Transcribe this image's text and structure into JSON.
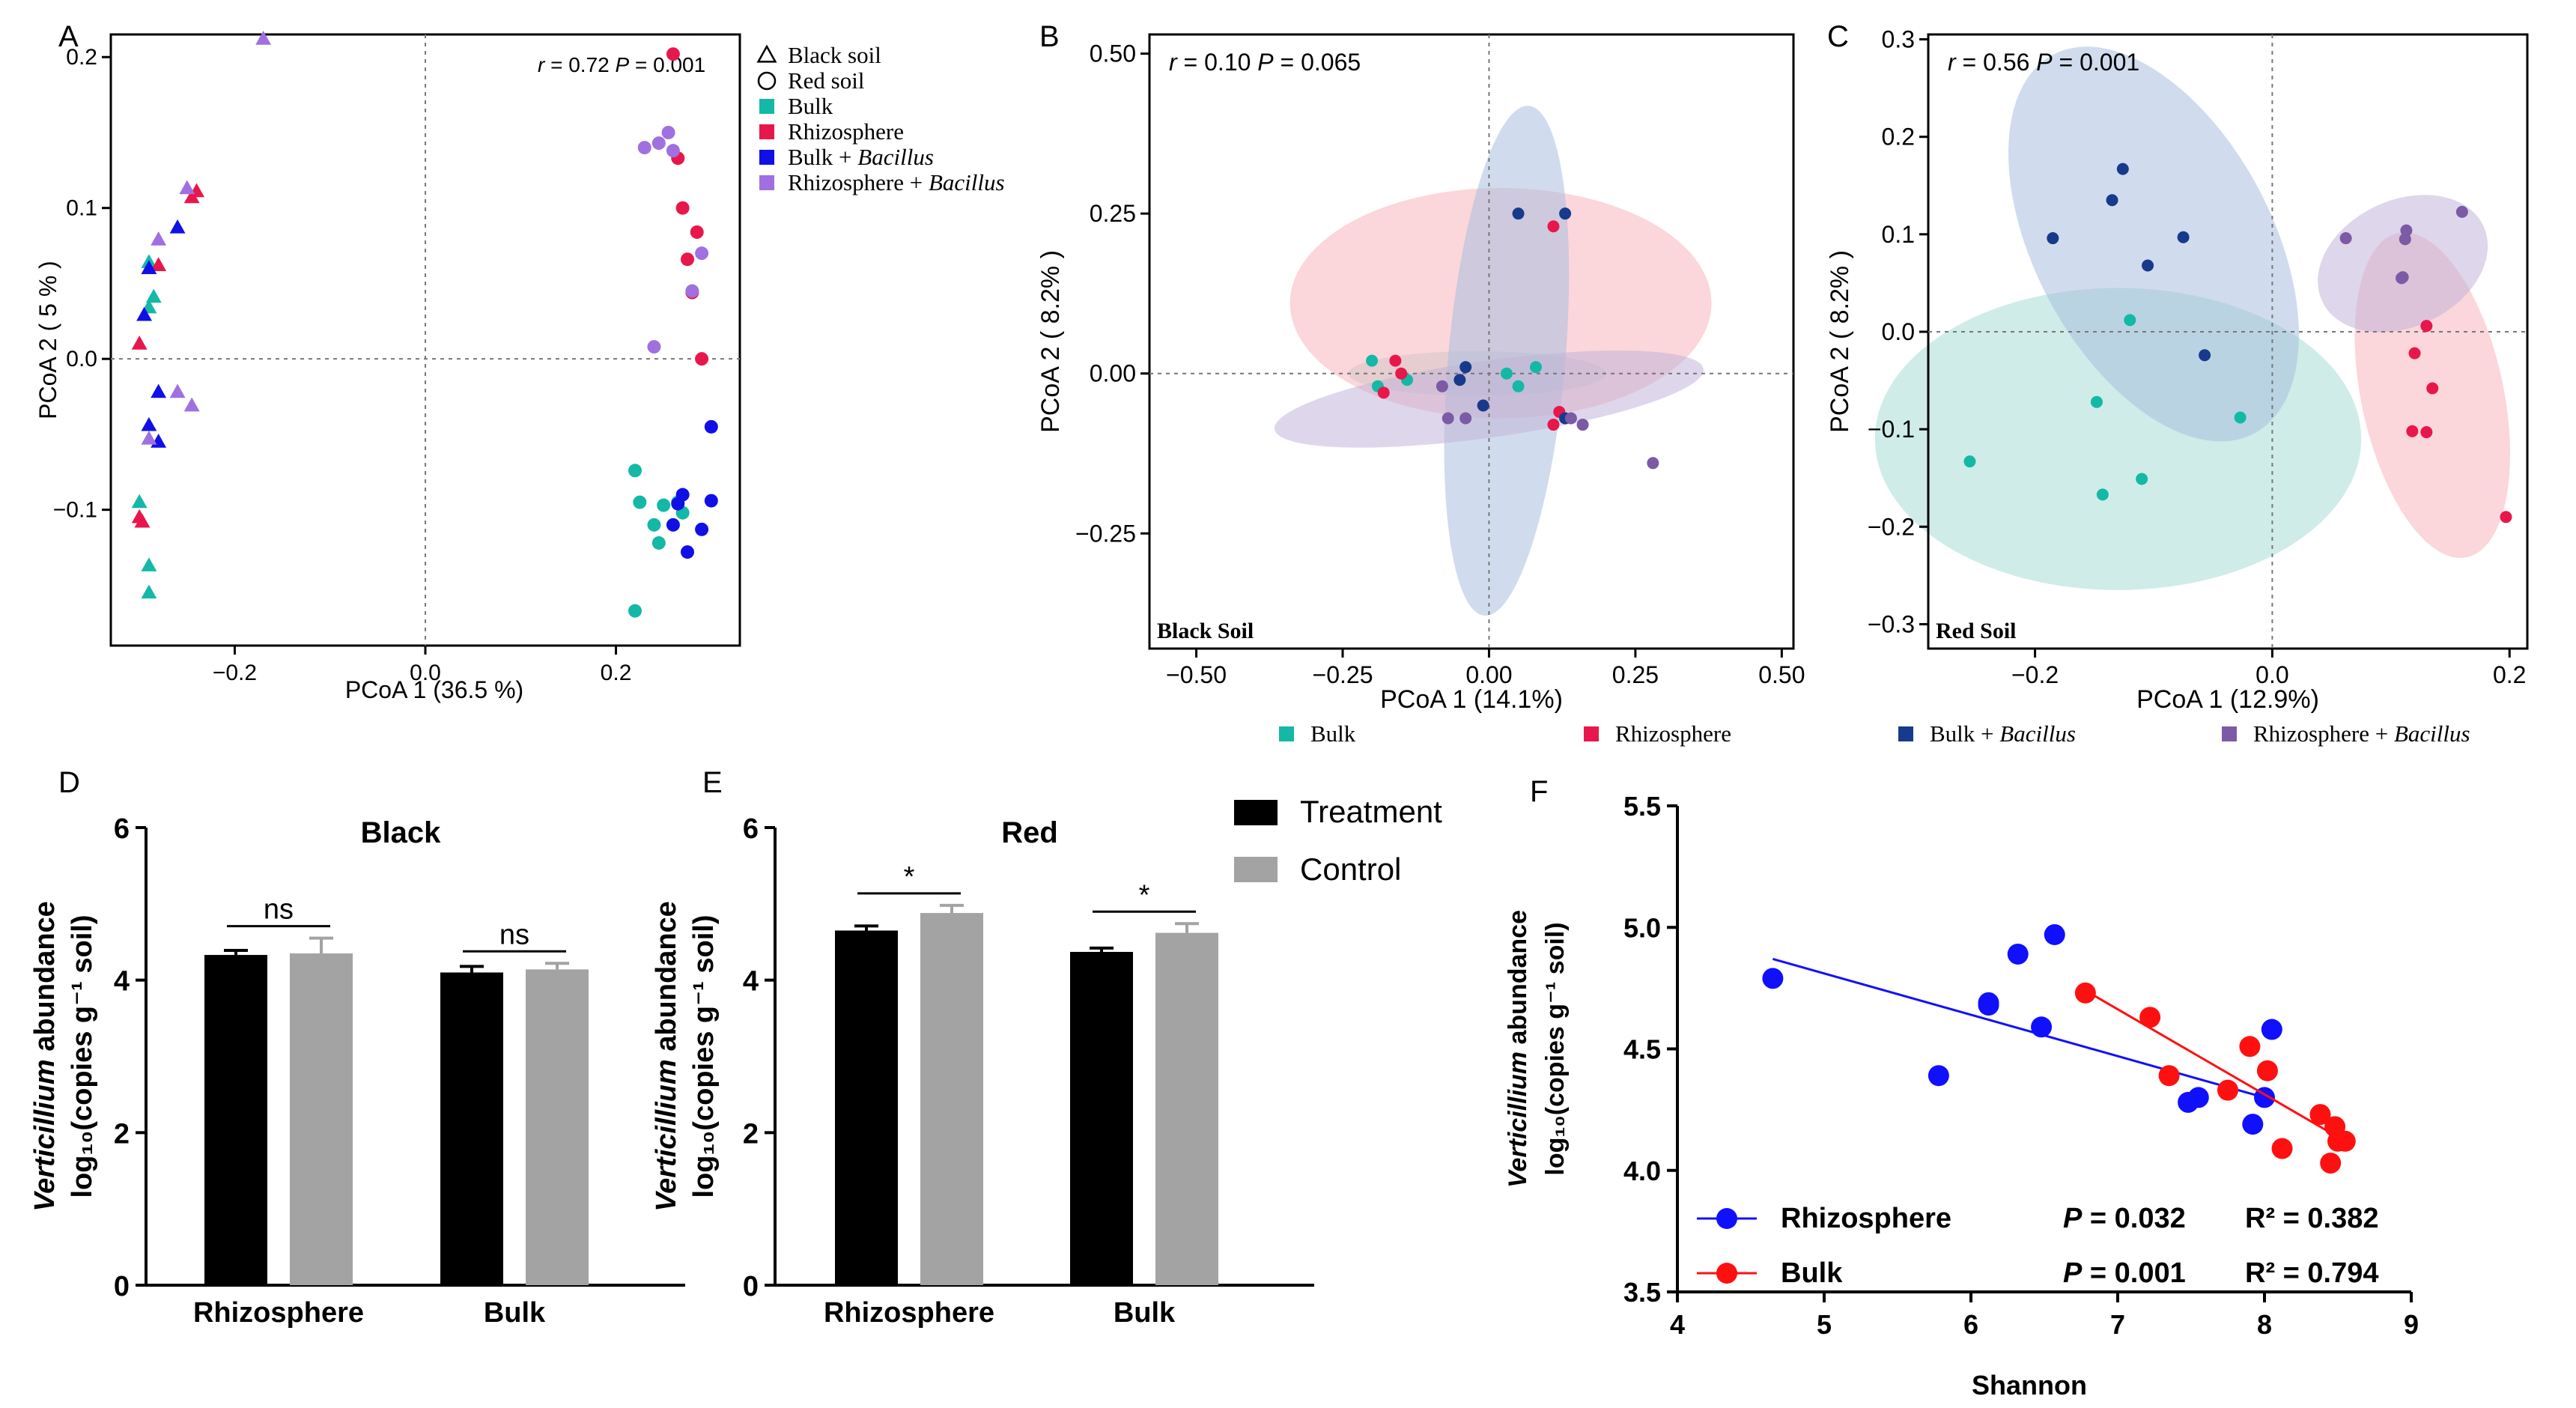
{
  "colors": {
    "bulk": "#14b8a6",
    "rhizosphere": "#e8174b",
    "bulk_bacillus": "#1010e6",
    "rhizo_bacillus": "#a070e0",
    "b_bulk_bacillus": "#173a8c",
    "b_rhizo_bacillus": "#7c5aa6",
    "bar_treatment": "#000000",
    "bar_control": "#a3a3a3",
    "f_rhizo": "#1010ff",
    "f_bulk": "#ff1010"
  },
  "chart_data": [
    {
      "panel": "A",
      "type": "scatter",
      "xlabel": "PCoA 1 (36.5 %)",
      "ylabel": "PCoA 2 ( 5 % )",
      "xlim": [
        -0.33,
        0.33
      ],
      "ylim": [
        -0.19,
        0.215
      ],
      "xticks": [
        -0.2,
        0.0,
        0.2
      ],
      "xtick_labels": [
        "−0.2",
        "0.0",
        "0.2"
      ],
      "yticks": [
        -0.1,
        0.0,
        0.1,
        0.2
      ],
      "ytick_labels": [
        "−0.1",
        "0.0",
        "0.1",
        "0.2"
      ],
      "stat": {
        "r_label": "r",
        "r_value": "= 0.72",
        "p_label": "P",
        "p_value": "= 0.001"
      },
      "legend": {
        "shapes": [
          {
            "symbol": "triangle",
            "label": "Black soil"
          },
          {
            "symbol": "circle",
            "label": "Red soil"
          }
        ],
        "groups": [
          {
            "key": "bulk",
            "label": "Bulk",
            "italic": ""
          },
          {
            "key": "rhizosphere",
            "label": "Rhizosphere",
            "italic": ""
          },
          {
            "key": "bulk_bacillus",
            "label": "Bulk + ",
            "italic": "Bacillus"
          },
          {
            "key": "rhizo_bacillus",
            "label": "Rhizosphere + ",
            "italic": "Bacillus"
          }
        ]
      },
      "series": [
        {
          "group": "bulk",
          "shape": "triangle",
          "points": [
            [
              -0.29,
              0.064
            ],
            [
              -0.285,
              0.041
            ],
            [
              -0.29,
              0.034
            ],
            [
              -0.3,
              -0.095
            ],
            [
              -0.29,
              -0.137
            ],
            [
              -0.29,
              -0.155
            ]
          ]
        },
        {
          "group": "rhizosphere",
          "shape": "triangle",
          "points": [
            [
              -0.24,
              0.111
            ],
            [
              -0.245,
              0.107
            ],
            [
              -0.28,
              0.062
            ],
            [
              -0.3,
              0.01
            ],
            [
              -0.3,
              -0.105
            ],
            [
              -0.297,
              -0.108
            ]
          ]
        },
        {
          "group": "bulk_bacillus",
          "shape": "triangle",
          "points": [
            [
              -0.26,
              0.087
            ],
            [
              -0.29,
              0.06
            ],
            [
              -0.295,
              0.029
            ],
            [
              -0.28,
              -0.022
            ],
            [
              -0.29,
              -0.044
            ],
            [
              -0.28,
              -0.055
            ]
          ]
        },
        {
          "group": "rhizo_bacillus",
          "shape": "triangle",
          "points": [
            [
              -0.17,
              0.212
            ],
            [
              -0.25,
              0.113
            ],
            [
              -0.28,
              0.079
            ],
            [
              -0.26,
              -0.022
            ],
            [
              -0.245,
              -0.031
            ],
            [
              -0.29,
              -0.053
            ]
          ]
        },
        {
          "group": "bulk",
          "shape": "circle",
          "points": [
            [
              0.22,
              -0.074
            ],
            [
              0.225,
              -0.095
            ],
            [
              0.24,
              -0.11
            ],
            [
              0.245,
              -0.122
            ],
            [
              0.25,
              -0.097
            ],
            [
              0.22,
              -0.167
            ],
            [
              0.265,
              -0.095
            ],
            [
              0.27,
              -0.102
            ]
          ]
        },
        {
          "group": "rhizosphere",
          "shape": "circle",
          "points": [
            [
              0.26,
              0.202
            ],
            [
              0.265,
              0.133
            ],
            [
              0.27,
              0.1
            ],
            [
              0.285,
              0.084
            ],
            [
              0.275,
              0.066
            ],
            [
              0.28,
              0.044
            ],
            [
              0.29,
              0.0
            ]
          ]
        },
        {
          "group": "bulk_bacillus",
          "shape": "circle",
          "points": [
            [
              0.3,
              -0.045
            ],
            [
              0.27,
              -0.09
            ],
            [
              0.265,
              -0.096
            ],
            [
              0.3,
              -0.094
            ],
            [
              0.26,
              -0.11
            ],
            [
              0.29,
              -0.113
            ],
            [
              0.275,
              -0.128
            ]
          ]
        },
        {
          "group": "rhizo_bacillus",
          "shape": "circle",
          "points": [
            [
              0.245,
              0.143
            ],
            [
              0.255,
              0.15
            ],
            [
              0.23,
              0.14
            ],
            [
              0.26,
              0.138
            ],
            [
              0.29,
              0.07
            ],
            [
              0.28,
              0.045
            ],
            [
              0.24,
              0.008
            ]
          ]
        }
      ]
    },
    {
      "panel": "B",
      "type": "scatter",
      "title_inset": "Black Soil",
      "xlabel": "PCoA 1 (14.1%)",
      "ylabel": "PCoA 2 ( 8.2% )",
      "xlim": [
        -0.58,
        0.52
      ],
      "ylim": [
        -0.43,
        0.53
      ],
      "xticks": [
        -0.5,
        -0.25,
        0,
        0.25,
        0.5
      ],
      "xtick_labels": [
        "−0.50",
        "−0.25",
        "0.00",
        "0.25",
        "0.50"
      ],
      "yticks": [
        -0.25,
        0,
        0.25,
        0.5
      ],
      "ytick_labels": [
        "−0.25",
        "0.00",
        "0.25",
        "0.50"
      ],
      "stat": {
        "r_label": "r",
        "r_value": "=  0.10",
        "p_label": "P",
        "p_value": "= 0.065"
      },
      "ellipses": [
        {
          "group": "bulk",
          "cx": -0.02,
          "cy": 0.0,
          "rx": 0.22,
          "ry": 0.035,
          "angle": 0
        },
        {
          "group": "rhizosphere",
          "cx": 0.02,
          "cy": 0.11,
          "rx": 0.36,
          "ry": 0.18,
          "angle": 0
        },
        {
          "group": "bulk_bacillus",
          "cx": 0.03,
          "cy": 0.02,
          "rx": 0.1,
          "ry": 0.4,
          "angle": 5
        },
        {
          "group": "rhizo_bacillus",
          "cx": 0.0,
          "cy": -0.04,
          "rx": 0.37,
          "ry": 0.06,
          "angle": -8
        }
      ],
      "series": [
        {
          "group": "bulk",
          "points": [
            [
              -0.2,
              0.02
            ],
            [
              -0.19,
              -0.02
            ],
            [
              -0.14,
              -0.01
            ],
            [
              0.03,
              0.0
            ],
            [
              0.05,
              -0.02
            ],
            [
              0.08,
              0.01
            ]
          ]
        },
        {
          "group": "rhizosphere",
          "points": [
            [
              0.11,
              0.23
            ],
            [
              -0.16,
              0.02
            ],
            [
              -0.15,
              0.0
            ],
            [
              -0.18,
              -0.03
            ],
            [
              0.12,
              -0.06
            ],
            [
              0.11,
              -0.08
            ]
          ]
        },
        {
          "group": "bulk_bacillus",
          "points": [
            [
              0.05,
              0.25
            ],
            [
              0.13,
              0.25
            ],
            [
              -0.05,
              -0.01
            ],
            [
              -0.04,
              0.01
            ],
            [
              -0.01,
              -0.05
            ],
            [
              0.13,
              -0.07
            ]
          ]
        },
        {
          "group": "rhizo_bacillus",
          "points": [
            [
              -0.08,
              -0.02
            ],
            [
              -0.04,
              -0.07
            ],
            [
              -0.07,
              -0.07
            ],
            [
              0.14,
              -0.07
            ],
            [
              0.16,
              -0.08
            ],
            [
              0.28,
              -0.14
            ]
          ]
        }
      ]
    },
    {
      "panel": "C",
      "type": "scatter",
      "title_inset": "Red Soil",
      "xlabel": "PCoA 1 (12.9%)",
      "ylabel": "PCoA 2 ( 8.2% )",
      "xlim": [
        -0.29,
        0.215
      ],
      "ylim": [
        -0.325,
        0.305
      ],
      "xticks": [
        -0.2,
        0.0,
        0.2
      ],
      "xtick_labels": [
        "−0.2",
        "0.0",
        "0.2"
      ],
      "yticks": [
        -0.3,
        -0.2,
        -0.1,
        0.0,
        0.1,
        0.2,
        0.3
      ],
      "ytick_labels": [
        "−0.3",
        "−0.2",
        "−0.1",
        "0.0",
        "0.1",
        "0.2",
        "0.3"
      ],
      "stat": {
        "r_label": "r",
        "r_value": "=  0.56",
        "p_label": "P",
        "p_value": "= 0.001"
      },
      "ellipses": [
        {
          "group": "bulk",
          "cx": -0.13,
          "cy": -0.11,
          "rx": 0.205,
          "ry": 0.155,
          "angle": 0
        },
        {
          "group": "bulk_bacillus",
          "cx": -0.1,
          "cy": 0.09,
          "rx": 0.1,
          "ry": 0.22,
          "angle": -28
        },
        {
          "group": "rhizosphere",
          "cx": 0.135,
          "cy": -0.065,
          "rx": 0.06,
          "ry": 0.17,
          "angle": -12
        },
        {
          "group": "rhizo_bacillus",
          "cx": 0.11,
          "cy": 0.07,
          "rx": 0.075,
          "ry": 0.065,
          "angle": -25
        }
      ],
      "series": [
        {
          "group": "bulk",
          "points": [
            [
              -0.255,
              -0.133
            ],
            [
              -0.148,
              -0.072
            ],
            [
              -0.143,
              -0.167
            ],
            [
              -0.11,
              -0.151
            ],
            [
              -0.12,
              0.012
            ],
            [
              -0.027,
              -0.088
            ]
          ]
        },
        {
          "group": "rhizosphere",
          "points": [
            [
              0.13,
              0.006
            ],
            [
              0.12,
              -0.022
            ],
            [
              0.135,
              -0.058
            ],
            [
              0.13,
              -0.103
            ],
            [
              0.118,
              -0.102
            ],
            [
              0.197,
              -0.19
            ]
          ]
        },
        {
          "group": "bulk_bacillus",
          "points": [
            [
              -0.135,
              0.135
            ],
            [
              -0.126,
              0.167
            ],
            [
              -0.185,
              0.096
            ],
            [
              -0.075,
              0.097
            ],
            [
              -0.105,
              0.068
            ],
            [
              -0.057,
              -0.024
            ]
          ]
        },
        {
          "group": "rhizo_bacillus",
          "points": [
            [
              0.062,
              0.096
            ],
            [
              0.113,
              0.104
            ],
            [
              0.112,
              0.095
            ],
            [
              0.11,
              0.056
            ],
            [
              0.109,
              0.055
            ],
            [
              0.16,
              0.123
            ]
          ]
        }
      ]
    },
    {
      "panel": "D",
      "type": "bar",
      "title": "Black",
      "ylabel_italic": "Verticillium",
      "ylabel_rest": " abundance",
      "ylabel2": "log₁₀(copies g⁻¹ soil)",
      "categories": [
        "Rhizosphere",
        "Bulk"
      ],
      "ylim": [
        0,
        6
      ],
      "yticks": [
        0,
        2,
        4,
        6
      ],
      "series": [
        {
          "name": "Treatment",
          "values": [
            4.33,
            4.1
          ],
          "errors": [
            0.06,
            0.08
          ]
        },
        {
          "name": "Control",
          "values": [
            4.35,
            4.14
          ],
          "errors": [
            0.2,
            0.08
          ]
        }
      ],
      "significance": [
        "ns",
        "ns"
      ]
    },
    {
      "panel": "E",
      "type": "bar",
      "title": "Red",
      "ylabel_italic": "Verticillium",
      "ylabel_rest": " abundance",
      "ylabel2": "log₁₀(copies g⁻¹ soil)",
      "categories": [
        "Rhizosphere",
        "Bulk"
      ],
      "ylim": [
        0,
        6
      ],
      "yticks": [
        0,
        2,
        4,
        6
      ],
      "series": [
        {
          "name": "Treatment",
          "values": [
            4.65,
            4.37
          ],
          "errors": [
            0.06,
            0.05
          ]
        },
        {
          "name": "Control",
          "values": [
            4.88,
            4.62
          ],
          "errors": [
            0.1,
            0.12
          ]
        }
      ],
      "significance": [
        "*",
        "*"
      ],
      "legend": [
        "Treatment",
        "Control"
      ]
    },
    {
      "panel": "F",
      "type": "scatter",
      "xlabel": "Shannon",
      "ylabel_italic": "Verticillium",
      "ylabel_rest": " abundance",
      "ylabel2": "log₁₀(copies g⁻¹ soil)",
      "xlim": [
        4,
        9
      ],
      "ylim": [
        3.5,
        5.5
      ],
      "xticks": [
        4,
        5,
        6,
        7,
        8,
        9
      ],
      "yticks": [
        3.5,
        4.0,
        4.5,
        5.0,
        5.5
      ],
      "ytick_labels": [
        "3.5",
        "4.0",
        "4.5",
        "5.0",
        "5.5"
      ],
      "series": [
        {
          "name": "Rhizosphere",
          "color_key": "f_rhizo",
          "p_label": "P",
          "p_value": "= 0.032",
          "r2": "R² = 0.382",
          "fit": [
            [
              4.65,
              4.87
            ],
            [
              8.0,
              4.3
            ]
          ],
          "points": [
            [
              4.65,
              4.79
            ],
            [
              5.78,
              4.39
            ],
            [
              6.12,
              4.69
            ],
            [
              6.12,
              4.68
            ],
            [
              6.32,
              4.89
            ],
            [
              6.48,
              4.59
            ],
            [
              6.57,
              4.97
            ],
            [
              7.48,
              4.28
            ],
            [
              7.55,
              4.3
            ],
            [
              7.92,
              4.19
            ],
            [
              8.0,
              4.3
            ],
            [
              8.05,
              4.58
            ]
          ]
        },
        {
          "name": "Bulk",
          "color_key": "f_bulk",
          "p_label": "P",
          "p_value": "= 0.001",
          "r2": "R² = 0.794",
          "fit": [
            [
              6.78,
              4.74
            ],
            [
              8.55,
              4.12
            ]
          ],
          "points": [
            [
              6.78,
              4.73
            ],
            [
              7.22,
              4.63
            ],
            [
              7.35,
              4.39
            ],
            [
              7.75,
              4.33
            ],
            [
              7.9,
              4.51
            ],
            [
              8.02,
              4.41
            ],
            [
              8.12,
              4.09
            ],
            [
              8.38,
              4.23
            ],
            [
              8.45,
              4.03
            ],
            [
              8.48,
              4.18
            ],
            [
              8.5,
              4.12
            ],
            [
              8.55,
              4.12
            ]
          ]
        }
      ]
    }
  ],
  "panel_letters": [
    "A",
    "B",
    "C",
    "D",
    "E",
    "F"
  ],
  "bc_legend": [
    {
      "key": "bulk",
      "label": "Bulk",
      "italic": ""
    },
    {
      "key": "rhizosphere",
      "label": "Rhizosphere",
      "italic": ""
    },
    {
      "key": "b_bulk_bacillus",
      "label": "Bulk + ",
      "italic": "Bacillus"
    },
    {
      "key": "b_rhizo_bacillus",
      "label": "Rhizosphere + ",
      "italic": "Bacillus"
    }
  ]
}
